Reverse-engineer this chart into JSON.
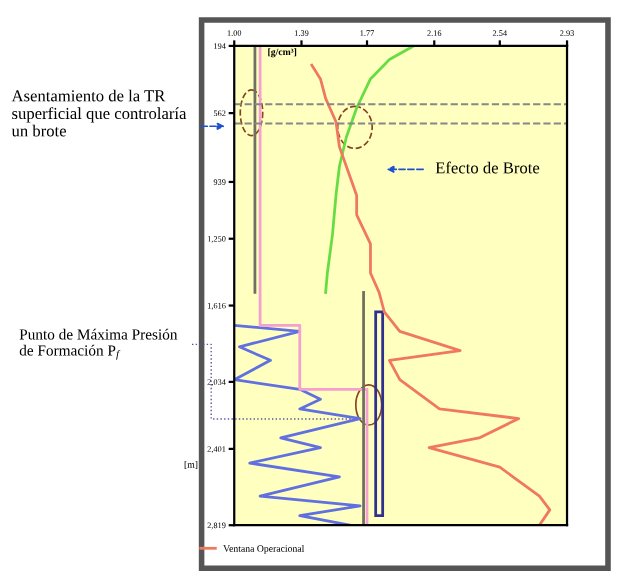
{
  "chart_data": {
    "type": "line",
    "xlabel": "[g/cm³]",
    "ylabel": "[m]",
    "xlim": [
      1.0,
      2.93
    ],
    "xticks": [
      {
        "value": 1.0,
        "label": "1.00"
      },
      1.39,
      1.77,
      2.16,
      2.54,
      2.93
    ],
    "ylim": [
      2819,
      194
    ],
    "yticks": [
      194,
      562,
      939,
      {
        "value": 1250,
        "label": "1,250"
      },
      {
        "value": 1616,
        "label": "1,616"
      },
      {
        "value": 2034,
        "label": "2,034"
      },
      {
        "value": 2401,
        "label": "2,401"
      },
      {
        "value": 2819,
        "label": "2,819"
      }
    ],
    "grid": false,
    "legend": "bottom left",
    "marker": "none",
    "line_style": "solid",
    "series": [
      {
        "color": "#66dd44",
        "x": [
          2.04,
          1.9,
          1.79,
          1.71,
          1.65,
          1.61,
          1.59,
          1.57,
          1.54,
          1.53
        ],
        "values": [
          194,
          268,
          375,
          534,
          694,
          853,
          1013,
          1225,
          1438,
          1544
        ]
      },
      {
        "name": "Ventana Operacional",
        "color": "#f07860",
        "x": [
          1.45,
          1.5,
          1.53,
          1.59,
          1.61,
          1.67,
          1.71,
          1.71,
          1.79,
          1.79,
          1.84,
          1.87,
          1.96,
          2.31,
          1.9,
          1.96,
          2.19,
          2.65,
          2.42,
          2.13,
          2.54,
          2.77,
          2.83,
          2.77
        ],
        "values": [
          300,
          375,
          481,
          609,
          747,
          906,
          1013,
          1119,
          1278,
          1438,
          1544,
          1650,
          1757,
          1863,
          1916,
          2022,
          2182,
          2235,
          2341,
          2394,
          2501,
          2660,
          2735,
          2819
        ]
      },
      {
        "color": "#6070e0",
        "x": [
          1.0,
          1.38,
          1.03,
          1.21,
          1.0,
          1.38,
          1.5,
          1.38,
          1.73,
          1.27,
          1.5,
          1.09,
          1.61,
          1.15,
          1.73,
          1.38,
          1.67
        ],
        "values": [
          1725,
          1757,
          1842,
          1916,
          2022,
          2075,
          2129,
          2182,
          2235,
          2341,
          2394,
          2479,
          2554,
          2660,
          2713,
          2767,
          2819
        ]
      },
      {
        "color": "#f4a0d0",
        "x": [
          1.15,
          1.15,
          1.38,
          1.38,
          1.77,
          1.77
        ],
        "values": [
          194,
          1725,
          1725,
          2075,
          2075,
          2819
        ]
      },
      {
        "color": "#707060",
        "x": [
          1.12,
          1.12
        ],
        "values": [
          194,
          1544
        ]
      },
      {
        "color": "#707060",
        "x": [
          1.75,
          1.75
        ],
        "values": [
          1544,
          2819
        ]
      }
    ],
    "ref_lines": [
      {
        "axis": "y",
        "value": 513,
        "color": "#888888",
        "line_style": "dashed"
      },
      {
        "axis": "y",
        "value": 619,
        "color": "#888888",
        "line_style": "dashed"
      }
    ],
    "annotations": [
      "Asentamiento de la TR superficial que controlaría un brote",
      "Efecto de Brote",
      "Punto de Máxima Presión de Formación P$_{f}$"
    ]
  }
}
